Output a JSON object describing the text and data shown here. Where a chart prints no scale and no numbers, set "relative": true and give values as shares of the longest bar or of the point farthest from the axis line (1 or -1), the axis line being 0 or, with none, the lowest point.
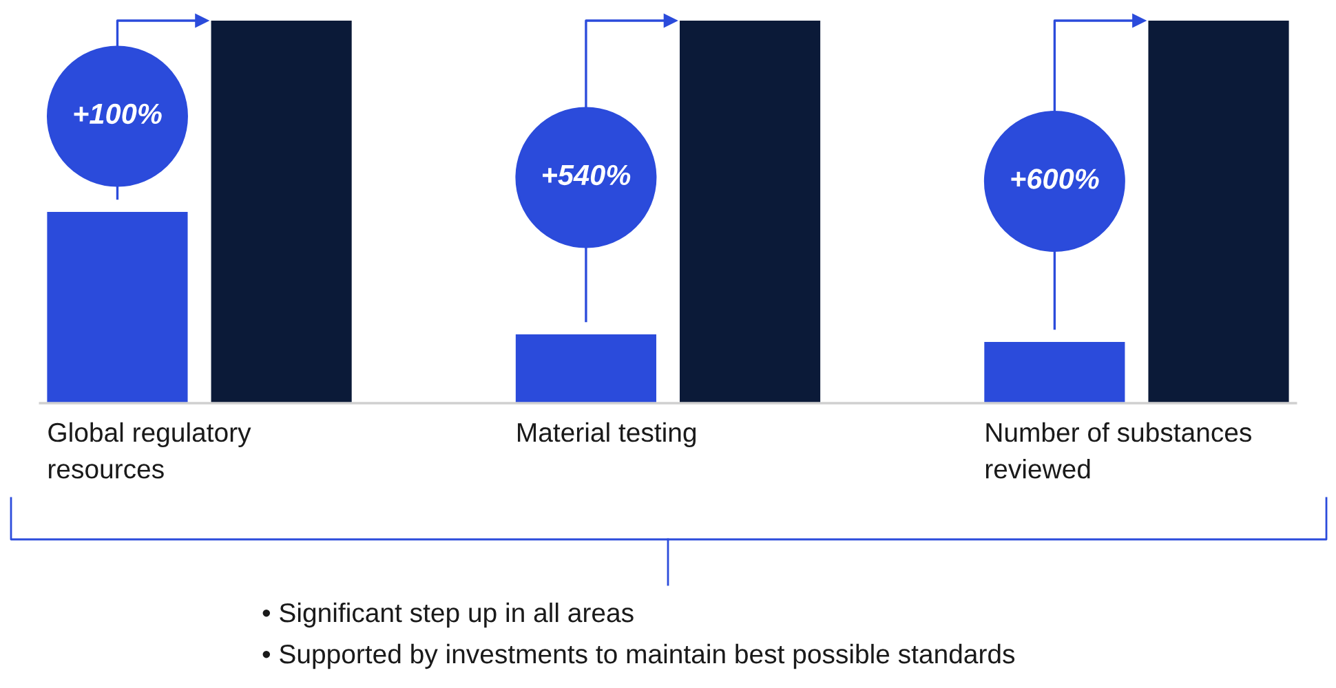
{
  "chart_data": {
    "type": "bar",
    "relative": true,
    "categories": [
      "Global regulatory resources",
      "Material testing",
      "Number of substances reviewed"
    ],
    "series": [
      {
        "color": "#2b4bdb",
        "values": [
          0.5,
          0.18,
          0.16
        ]
      },
      {
        "color": "#0b1a38",
        "values": [
          1,
          1,
          1
        ]
      }
    ],
    "annotations": [
      "+100%",
      "+540%",
      "+600%",
      "• Significant step up in all areas",
      "• Supported by investments to maintain best possible standards"
    ],
    "legend": false
  }
}
